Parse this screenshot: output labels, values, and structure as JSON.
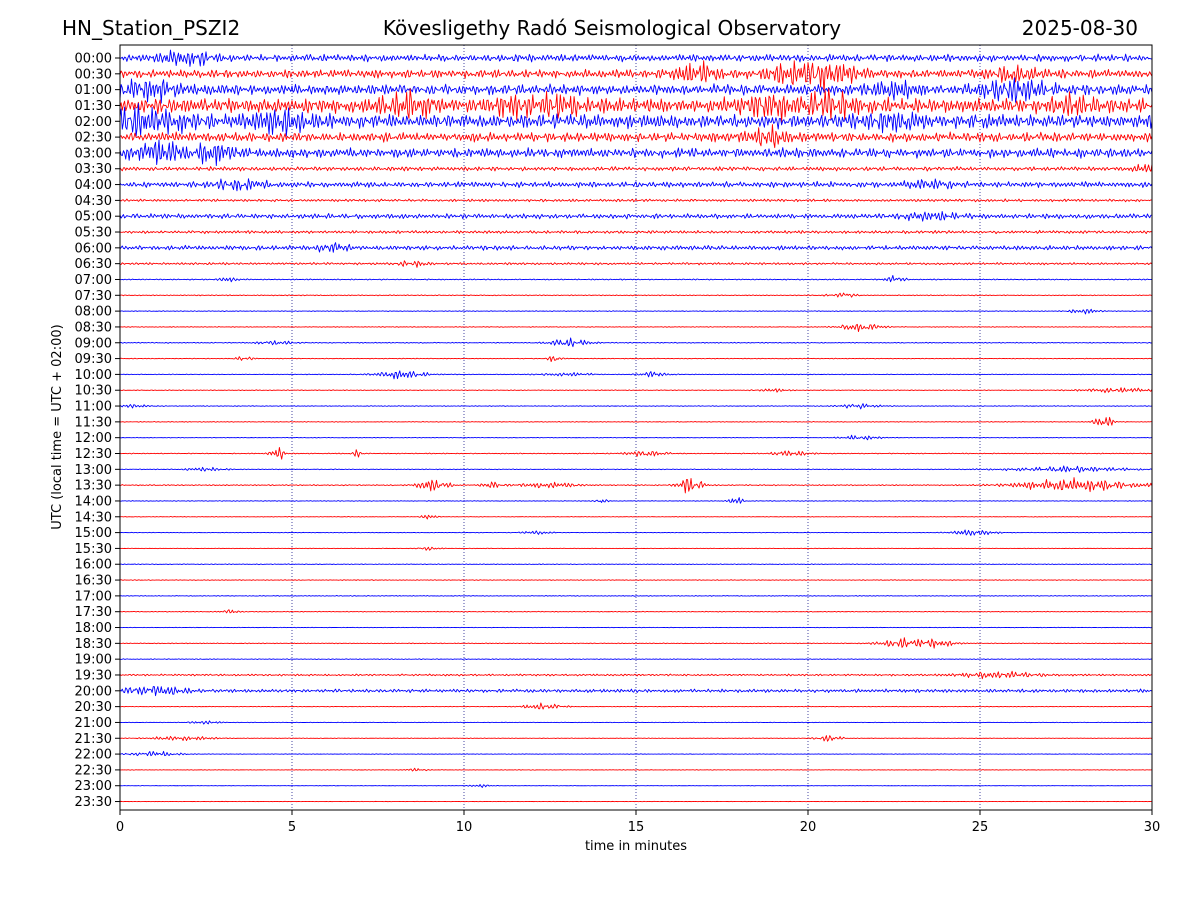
{
  "header": {
    "station": "HN_Station_PSZI2",
    "observatory": "Kövesligethy Radó Seismological Observatory",
    "date": "2025-08-30"
  },
  "chart_data": {
    "type": "line",
    "title": "Kövesligethy Radó Seismological Observatory",
    "xlabel": "time in minutes",
    "ylabel": "UTC (local time = UTC + 02:00)",
    "xlim": [
      0,
      30
    ],
    "x_ticks": [
      "0",
      "5",
      "10",
      "15",
      "20",
      "25",
      "30"
    ],
    "x_tick_values": [
      0,
      5,
      10,
      15,
      20,
      25,
      30
    ],
    "grid": "vertical dotted lines at 5, 10, 15, 20, 25 minutes",
    "trace_colors": [
      "#0000ff",
      "#ff0000"
    ],
    "rows": [
      {
        "label": "00:00",
        "level": 0.38,
        "events": [
          {
            "t": 1.6,
            "a": 0.5,
            "w": 0.4
          },
          {
            "t": 2.4,
            "a": 0.5,
            "w": 0.3
          }
        ]
      },
      {
        "label": "00:30",
        "level": 0.45,
        "events": [
          {
            "t": 16.8,
            "a": 0.9,
            "w": 0.5
          },
          {
            "t": 19.8,
            "a": 1.1,
            "w": 0.7
          },
          {
            "t": 20.8,
            "a": 0.8,
            "w": 0.5
          },
          {
            "t": 26.0,
            "a": 0.6,
            "w": 0.6
          }
        ]
      },
      {
        "label": "01:00",
        "level": 0.55,
        "events": [
          {
            "t": 0.8,
            "a": 1.2,
            "w": 0.6
          },
          {
            "t": 26.0,
            "a": 1.1,
            "w": 0.6
          },
          {
            "t": 22.5,
            "a": 0.6,
            "w": 0.5
          }
        ]
      },
      {
        "label": "01:30",
        "level": 0.8,
        "events": [
          {
            "t": 8.4,
            "a": 1.0,
            "w": 0.6
          },
          {
            "t": 11.5,
            "a": 0.9,
            "w": 0.5
          },
          {
            "t": 12.8,
            "a": 0.9,
            "w": 0.4
          },
          {
            "t": 18.9,
            "a": 1.1,
            "w": 0.5
          },
          {
            "t": 20.6,
            "a": 1.0,
            "w": 0.5
          },
          {
            "t": 27.7,
            "a": 0.8,
            "w": 0.4
          }
        ]
      },
      {
        "label": "02:00",
        "level": 0.75,
        "events": [
          {
            "t": 0.8,
            "a": 1.2,
            "w": 0.8
          },
          {
            "t": 4.7,
            "a": 0.9,
            "w": 0.6
          },
          {
            "t": 22.5,
            "a": 0.7,
            "w": 0.6
          }
        ]
      },
      {
        "label": "02:30",
        "level": 0.5,
        "events": [
          {
            "t": 18.8,
            "a": 0.8,
            "w": 0.4
          }
        ]
      },
      {
        "label": "03:00",
        "level": 0.5,
        "events": [
          {
            "t": 1.2,
            "a": 0.9,
            "w": 0.6
          },
          {
            "t": 2.8,
            "a": 0.9,
            "w": 0.4
          }
        ]
      },
      {
        "label": "03:30",
        "level": 0.22,
        "events": [
          {
            "t": 29.9,
            "a": 0.5,
            "w": 0.3
          }
        ]
      },
      {
        "label": "04:00",
        "level": 0.3,
        "events": [
          {
            "t": 3.4,
            "a": 0.5,
            "w": 0.6
          },
          {
            "t": 23.5,
            "a": 0.4,
            "w": 0.5
          }
        ]
      },
      {
        "label": "04:30",
        "level": 0.14,
        "events": []
      },
      {
        "label": "05:00",
        "level": 0.26,
        "events": [
          {
            "t": 23.5,
            "a": 0.3,
            "w": 0.6
          }
        ]
      },
      {
        "label": "05:30",
        "level": 0.16,
        "events": []
      },
      {
        "label": "06:00",
        "level": 0.24,
        "events": [
          {
            "t": 6.2,
            "a": 0.4,
            "w": 0.3
          }
        ]
      },
      {
        "label": "06:30",
        "level": 0.12,
        "events": [
          {
            "t": 8.5,
            "a": 0.3,
            "w": 0.3
          }
        ]
      },
      {
        "label": "07:00",
        "level": 0.06,
        "events": [
          {
            "t": 22.5,
            "a": 0.4,
            "w": 0.2
          },
          {
            "t": 3.2,
            "a": 0.25,
            "w": 0.2
          }
        ]
      },
      {
        "label": "07:30",
        "level": 0.05,
        "events": [
          {
            "t": 21.0,
            "a": 0.25,
            "w": 0.3
          }
        ]
      },
      {
        "label": "08:00",
        "level": 0.04,
        "events": [
          {
            "t": 28.0,
            "a": 0.3,
            "w": 0.3
          }
        ]
      },
      {
        "label": "08:30",
        "level": 0.04,
        "events": [
          {
            "t": 21.5,
            "a": 0.45,
            "w": 0.4
          }
        ]
      },
      {
        "label": "09:00",
        "level": 0.05,
        "events": [
          {
            "t": 13.1,
            "a": 0.45,
            "w": 0.4
          },
          {
            "t": 4.5,
            "a": 0.2,
            "w": 0.4
          }
        ]
      },
      {
        "label": "09:30",
        "level": 0.04,
        "events": [
          {
            "t": 12.6,
            "a": 0.3,
            "w": 0.15
          },
          {
            "t": 3.6,
            "a": 0.2,
            "w": 0.2
          }
        ]
      },
      {
        "label": "10:00",
        "level": 0.04,
        "events": [
          {
            "t": 8.2,
            "a": 0.5,
            "w": 0.5
          },
          {
            "t": 15.5,
            "a": 0.3,
            "w": 0.3
          },
          {
            "t": 13.0,
            "a": 0.2,
            "w": 0.5
          }
        ]
      },
      {
        "label": "10:30",
        "level": 0.04,
        "events": [
          {
            "t": 29.0,
            "a": 0.25,
            "w": 0.8
          },
          {
            "t": 19.0,
            "a": 0.2,
            "w": 0.3
          }
        ]
      },
      {
        "label": "11:00",
        "level": 0.04,
        "events": [
          {
            "t": 21.5,
            "a": 0.25,
            "w": 0.4
          },
          {
            "t": 0.4,
            "a": 0.2,
            "w": 0.3
          }
        ]
      },
      {
        "label": "11:30",
        "level": 0.04,
        "events": [
          {
            "t": 28.6,
            "a": 0.6,
            "w": 0.2
          }
        ]
      },
      {
        "label": "12:00",
        "level": 0.03,
        "events": [
          {
            "t": 21.5,
            "a": 0.25,
            "w": 0.4
          }
        ]
      },
      {
        "label": "12:30",
        "level": 0.05,
        "events": [
          {
            "t": 4.6,
            "a": 0.7,
            "w": 0.15
          },
          {
            "t": 6.9,
            "a": 0.4,
            "w": 0.1
          },
          {
            "t": 15.3,
            "a": 0.3,
            "w": 0.4
          },
          {
            "t": 19.5,
            "a": 0.3,
            "w": 0.4
          }
        ]
      },
      {
        "label": "13:00",
        "level": 0.04,
        "events": [
          {
            "t": 27.5,
            "a": 0.3,
            "w": 1.2
          },
          {
            "t": 2.5,
            "a": 0.2,
            "w": 0.4
          }
        ]
      },
      {
        "label": "13:30",
        "level": 0.06,
        "events": [
          {
            "t": 9.1,
            "a": 0.7,
            "w": 0.3
          },
          {
            "t": 16.6,
            "a": 0.95,
            "w": 0.25
          },
          {
            "t": 27.8,
            "a": 0.7,
            "w": 1.2
          },
          {
            "t": 10.8,
            "a": 0.4,
            "w": 0.2
          },
          {
            "t": 12.5,
            "a": 0.3,
            "w": 0.6
          }
        ]
      },
      {
        "label": "14:00",
        "level": 0.04,
        "events": [
          {
            "t": 17.9,
            "a": 0.45,
            "w": 0.15
          },
          {
            "t": 14.0,
            "a": 0.3,
            "w": 0.1
          }
        ]
      },
      {
        "label": "14:30",
        "level": 0.03,
        "events": [
          {
            "t": 9.0,
            "a": 0.3,
            "w": 0.15
          }
        ]
      },
      {
        "label": "15:00",
        "level": 0.03,
        "events": [
          {
            "t": 24.8,
            "a": 0.4,
            "w": 0.4
          },
          {
            "t": 12.1,
            "a": 0.2,
            "w": 0.3
          }
        ]
      },
      {
        "label": "15:30",
        "level": 0.03,
        "events": [
          {
            "t": 9.0,
            "a": 0.2,
            "w": 0.2
          }
        ]
      },
      {
        "label": "16:00",
        "level": 0.04,
        "events": []
      },
      {
        "label": "16:30",
        "level": 0.04,
        "events": []
      },
      {
        "label": "17:00",
        "level": 0.04,
        "events": []
      },
      {
        "label": "17:30",
        "level": 0.04,
        "events": [
          {
            "t": 3.2,
            "a": 0.2,
            "w": 0.2
          }
        ]
      },
      {
        "label": "18:00",
        "level": 0.03,
        "events": []
      },
      {
        "label": "18:30",
        "level": 0.04,
        "events": [
          {
            "t": 22.8,
            "a": 0.5,
            "w": 0.5
          },
          {
            "t": 23.8,
            "a": 0.35,
            "w": 0.4
          }
        ]
      },
      {
        "label": "19:00",
        "level": 0.04,
        "events": []
      },
      {
        "label": "19:30",
        "level": 0.1,
        "events": [
          {
            "t": 25.5,
            "a": 0.3,
            "w": 0.8
          }
        ]
      },
      {
        "label": "20:00",
        "level": 0.18,
        "events": [
          {
            "t": 1.0,
            "a": 0.5,
            "w": 0.6
          }
        ]
      },
      {
        "label": "20:30",
        "level": 0.03,
        "events": [
          {
            "t": 12.3,
            "a": 0.35,
            "w": 0.4
          }
        ]
      },
      {
        "label": "21:00",
        "level": 0.03,
        "events": [
          {
            "t": 2.5,
            "a": 0.2,
            "w": 0.3
          }
        ]
      },
      {
        "label": "21:30",
        "level": 0.03,
        "events": [
          {
            "t": 20.6,
            "a": 0.35,
            "w": 0.25
          },
          {
            "t": 1.8,
            "a": 0.25,
            "w": 0.6
          }
        ]
      },
      {
        "label": "22:00",
        "level": 0.03,
        "events": [
          {
            "t": 1.0,
            "a": 0.3,
            "w": 0.5
          }
        ]
      },
      {
        "label": "22:30",
        "level": 0.03,
        "events": [
          {
            "t": 8.6,
            "a": 0.2,
            "w": 0.2
          }
        ]
      },
      {
        "label": "23:00",
        "level": 0.02,
        "events": [
          {
            "t": 10.5,
            "a": 0.2,
            "w": 0.2
          }
        ]
      },
      {
        "label": "23:30",
        "level": 0.02,
        "events": []
      }
    ]
  }
}
